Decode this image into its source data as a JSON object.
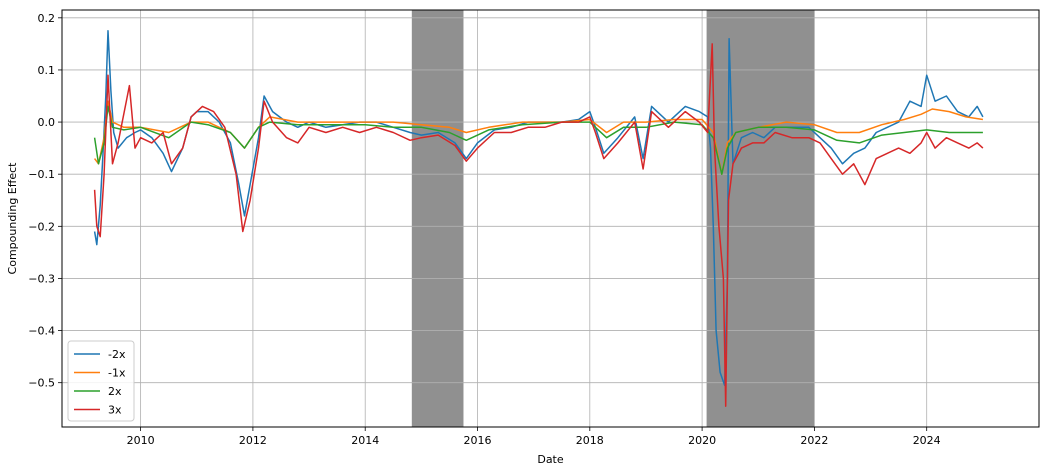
{
  "chart_data": {
    "type": "line",
    "xlabel": "Date",
    "ylabel": "Compounding Effect",
    "xlim": [
      2008.6,
      2026.0
    ],
    "ylim": [
      -0.585,
      0.215
    ],
    "x_ticks": [
      2010,
      2012,
      2014,
      2016,
      2018,
      2020,
      2022,
      2024
    ],
    "y_ticks": [
      0.2,
      0.1,
      0.0,
      -0.1,
      -0.2,
      -0.3,
      -0.4,
      -0.5
    ],
    "x_tick_labels": [
      "2010",
      "2012",
      "2014",
      "2016",
      "2018",
      "2020",
      "2022",
      "2024"
    ],
    "y_tick_labels": [
      "0.2",
      "0.1",
      "0.0",
      "−0.1",
      "−0.2",
      "−0.3",
      "−0.4",
      "−0.5"
    ],
    "grid": true,
    "legend_position": "lower-left",
    "shaded_regions": [
      {
        "start": 2014.83,
        "end": 2015.75,
        "color": "#909090"
      },
      {
        "start": 2020.08,
        "end": 2022.0,
        "color": "#909090"
      }
    ],
    "series": [
      {
        "name": "-2x",
        "color": "#1f77b4",
        "points": [
          [
            2009.18,
            -0.21
          ],
          [
            2009.22,
            -0.235
          ],
          [
            2009.28,
            -0.16
          ],
          [
            2009.33,
            -0.06
          ],
          [
            2009.38,
            0.05
          ],
          [
            2009.42,
            0.175
          ],
          [
            2009.47,
            0.06
          ],
          [
            2009.52,
            -0.02
          ],
          [
            2009.6,
            -0.05
          ],
          [
            2009.75,
            -0.03
          ],
          [
            2009.9,
            -0.02
          ],
          [
            2010.0,
            -0.015
          ],
          [
            2010.2,
            -0.03
          ],
          [
            2010.4,
            -0.06
          ],
          [
            2010.55,
            -0.095
          ],
          [
            2010.75,
            -0.05
          ],
          [
            2010.9,
            0.01
          ],
          [
            2011.0,
            0.02
          ],
          [
            2011.2,
            0.02
          ],
          [
            2011.4,
            0.0
          ],
          [
            2011.6,
            -0.04
          ],
          [
            2011.75,
            -0.12
          ],
          [
            2011.85,
            -0.18
          ],
          [
            2011.95,
            -0.12
          ],
          [
            2012.1,
            -0.03
          ],
          [
            2012.2,
            0.05
          ],
          [
            2012.35,
            0.02
          ],
          [
            2012.6,
            0.0
          ],
          [
            2012.8,
            -0.01
          ],
          [
            2013.0,
            0.0
          ],
          [
            2013.3,
            -0.01
          ],
          [
            2013.6,
            -0.005
          ],
          [
            2013.9,
            0.0
          ],
          [
            2014.2,
            0.0
          ],
          [
            2014.5,
            -0.01
          ],
          [
            2014.8,
            -0.02
          ],
          [
            2015.0,
            -0.025
          ],
          [
            2015.3,
            -0.02
          ],
          [
            2015.6,
            -0.04
          ],
          [
            2015.8,
            -0.07
          ],
          [
            2016.0,
            -0.04
          ],
          [
            2016.3,
            -0.015
          ],
          [
            2016.6,
            -0.01
          ],
          [
            2016.9,
            0.0
          ],
          [
            2017.2,
            0.0
          ],
          [
            2017.5,
            0.0
          ],
          [
            2017.8,
            0.005
          ],
          [
            2018.0,
            0.02
          ],
          [
            2018.1,
            -0.01
          ],
          [
            2018.25,
            -0.06
          ],
          [
            2018.5,
            -0.03
          ],
          [
            2018.8,
            0.01
          ],
          [
            2018.95,
            -0.07
          ],
          [
            2019.1,
            0.03
          ],
          [
            2019.4,
            0.0
          ],
          [
            2019.7,
            0.03
          ],
          [
            2019.95,
            0.02
          ],
          [
            2020.1,
            0.01
          ],
          [
            2020.15,
            -0.05
          ],
          [
            2020.2,
            -0.2
          ],
          [
            2020.25,
            -0.4
          ],
          [
            2020.32,
            -0.48
          ],
          [
            2020.4,
            -0.505
          ],
          [
            2020.45,
            -0.3
          ],
          [
            2020.48,
            0.16
          ],
          [
            2020.55,
            -0.08
          ],
          [
            2020.7,
            -0.03
          ],
          [
            2020.9,
            -0.02
          ],
          [
            2021.1,
            -0.03
          ],
          [
            2021.3,
            -0.01
          ],
          [
            2021.6,
            -0.01
          ],
          [
            2021.9,
            -0.01
          ],
          [
            2022.1,
            -0.03
          ],
          [
            2022.3,
            -0.05
          ],
          [
            2022.5,
            -0.08
          ],
          [
            2022.7,
            -0.06
          ],
          [
            2022.9,
            -0.05
          ],
          [
            2023.1,
            -0.02
          ],
          [
            2023.3,
            -0.01
          ],
          [
            2023.5,
            0.0
          ],
          [
            2023.7,
            0.04
          ],
          [
            2023.9,
            0.03
          ],
          [
            2024.0,
            0.09
          ],
          [
            2024.15,
            0.04
          ],
          [
            2024.35,
            0.05
          ],
          [
            2024.55,
            0.02
          ],
          [
            2024.75,
            0.01
          ],
          [
            2024.9,
            0.03
          ],
          [
            2025.0,
            0.01
          ]
        ]
      },
      {
        "name": "-1x",
        "color": "#ff7f0e",
        "points": [
          [
            2009.18,
            -0.07
          ],
          [
            2009.25,
            -0.08
          ],
          [
            2009.35,
            -0.03
          ],
          [
            2009.42,
            0.04
          ],
          [
            2009.5,
            0.0
          ],
          [
            2009.7,
            -0.01
          ],
          [
            2010.0,
            -0.01
          ],
          [
            2010.5,
            -0.02
          ],
          [
            2010.9,
            0.0
          ],
          [
            2011.2,
            0.0
          ],
          [
            2011.6,
            -0.02
          ],
          [
            2011.85,
            -0.05
          ],
          [
            2012.1,
            -0.01
          ],
          [
            2012.3,
            0.01
          ],
          [
            2012.8,
            0.0
          ],
          [
            2013.5,
            0.0
          ],
          [
            2014.0,
            0.0
          ],
          [
            2014.5,
            0.0
          ],
          [
            2015.0,
            -0.005
          ],
          [
            2015.5,
            -0.01
          ],
          [
            2015.8,
            -0.02
          ],
          [
            2016.2,
            -0.01
          ],
          [
            2016.8,
            0.0
          ],
          [
            2017.5,
            0.0
          ],
          [
            2018.0,
            0.005
          ],
          [
            2018.3,
            -0.02
          ],
          [
            2018.6,
            0.0
          ],
          [
            2019.0,
            0.0
          ],
          [
            2019.5,
            0.005
          ],
          [
            2020.0,
            0.005
          ],
          [
            2020.2,
            -0.02
          ],
          [
            2020.35,
            -0.1
          ],
          [
            2020.45,
            -0.04
          ],
          [
            2020.6,
            -0.02
          ],
          [
            2021.0,
            -0.01
          ],
          [
            2021.5,
            0.0
          ],
          [
            2022.0,
            -0.005
          ],
          [
            2022.4,
            -0.02
          ],
          [
            2022.8,
            -0.02
          ],
          [
            2023.2,
            -0.005
          ],
          [
            2023.6,
            0.005
          ],
          [
            2023.9,
            0.015
          ],
          [
            2024.1,
            0.025
          ],
          [
            2024.4,
            0.02
          ],
          [
            2024.7,
            0.01
          ],
          [
            2025.0,
            0.005
          ]
        ]
      },
      {
        "name": "2x",
        "color": "#2ca02c",
        "points": [
          [
            2009.18,
            -0.03
          ],
          [
            2009.25,
            -0.08
          ],
          [
            2009.35,
            -0.04
          ],
          [
            2009.42,
            0.03
          ],
          [
            2009.5,
            -0.01
          ],
          [
            2009.7,
            -0.015
          ],
          [
            2010.0,
            -0.01
          ],
          [
            2010.5,
            -0.03
          ],
          [
            2010.9,
            0.0
          ],
          [
            2011.2,
            -0.005
          ],
          [
            2011.6,
            -0.02
          ],
          [
            2011.85,
            -0.05
          ],
          [
            2012.1,
            -0.01
          ],
          [
            2012.3,
            0.0
          ],
          [
            2012.8,
            -0.005
          ],
          [
            2013.5,
            -0.005
          ],
          [
            2014.0,
            -0.005
          ],
          [
            2014.5,
            -0.01
          ],
          [
            2015.0,
            -0.01
          ],
          [
            2015.5,
            -0.02
          ],
          [
            2015.8,
            -0.035
          ],
          [
            2016.2,
            -0.015
          ],
          [
            2016.8,
            -0.005
          ],
          [
            2017.5,
            0.0
          ],
          [
            2018.0,
            0.0
          ],
          [
            2018.3,
            -0.03
          ],
          [
            2018.6,
            -0.01
          ],
          [
            2019.0,
            -0.01
          ],
          [
            2019.5,
            0.0
          ],
          [
            2020.0,
            -0.005
          ],
          [
            2020.2,
            -0.03
          ],
          [
            2020.35,
            -0.1
          ],
          [
            2020.45,
            -0.05
          ],
          [
            2020.6,
            -0.02
          ],
          [
            2021.0,
            -0.01
          ],
          [
            2021.5,
            -0.01
          ],
          [
            2022.0,
            -0.015
          ],
          [
            2022.4,
            -0.035
          ],
          [
            2022.8,
            -0.04
          ],
          [
            2023.2,
            -0.025
          ],
          [
            2023.6,
            -0.02
          ],
          [
            2024.0,
            -0.015
          ],
          [
            2024.4,
            -0.02
          ],
          [
            2024.7,
            -0.02
          ],
          [
            2025.0,
            -0.02
          ]
        ]
      },
      {
        "name": "3x",
        "color": "#d62728",
        "points": [
          [
            2009.18,
            -0.13
          ],
          [
            2009.22,
            -0.2
          ],
          [
            2009.28,
            -0.22
          ],
          [
            2009.35,
            -0.1
          ],
          [
            2009.42,
            0.09
          ],
          [
            2009.5,
            -0.08
          ],
          [
            2009.6,
            -0.04
          ],
          [
            2009.8,
            0.07
          ],
          [
            2009.9,
            -0.05
          ],
          [
            2010.0,
            -0.03
          ],
          [
            2010.2,
            -0.04
          ],
          [
            2010.4,
            -0.02
          ],
          [
            2010.55,
            -0.08
          ],
          [
            2010.75,
            -0.05
          ],
          [
            2010.9,
            0.01
          ],
          [
            2011.1,
            0.03
          ],
          [
            2011.3,
            0.02
          ],
          [
            2011.5,
            -0.01
          ],
          [
            2011.7,
            -0.1
          ],
          [
            2011.82,
            -0.21
          ],
          [
            2011.95,
            -0.15
          ],
          [
            2012.1,
            -0.05
          ],
          [
            2012.2,
            0.04
          ],
          [
            2012.35,
            0.0
          ],
          [
            2012.6,
            -0.03
          ],
          [
            2012.8,
            -0.04
          ],
          [
            2013.0,
            -0.01
          ],
          [
            2013.3,
            -0.02
          ],
          [
            2013.6,
            -0.01
          ],
          [
            2013.9,
            -0.02
          ],
          [
            2014.2,
            -0.01
          ],
          [
            2014.5,
            -0.02
          ],
          [
            2014.8,
            -0.035
          ],
          [
            2015.0,
            -0.03
          ],
          [
            2015.3,
            -0.025
          ],
          [
            2015.6,
            -0.045
          ],
          [
            2015.8,
            -0.075
          ],
          [
            2016.0,
            -0.05
          ],
          [
            2016.3,
            -0.02
          ],
          [
            2016.6,
            -0.02
          ],
          [
            2016.9,
            -0.01
          ],
          [
            2017.2,
            -0.01
          ],
          [
            2017.5,
            0.0
          ],
          [
            2017.8,
            0.0
          ],
          [
            2018.0,
            0.01
          ],
          [
            2018.1,
            -0.02
          ],
          [
            2018.25,
            -0.07
          ],
          [
            2018.5,
            -0.04
          ],
          [
            2018.8,
            0.0
          ],
          [
            2018.95,
            -0.09
          ],
          [
            2019.1,
            0.02
          ],
          [
            2019.4,
            -0.01
          ],
          [
            2019.7,
            0.02
          ],
          [
            2019.95,
            0.0
          ],
          [
            2020.1,
            -0.02
          ],
          [
            2020.18,
            0.15
          ],
          [
            2020.22,
            -0.05
          ],
          [
            2020.3,
            -0.2
          ],
          [
            2020.38,
            -0.3
          ],
          [
            2020.42,
            -0.545
          ],
          [
            2020.47,
            -0.15
          ],
          [
            2020.55,
            -0.08
          ],
          [
            2020.7,
            -0.05
          ],
          [
            2020.9,
            -0.04
          ],
          [
            2021.1,
            -0.04
          ],
          [
            2021.3,
            -0.02
          ],
          [
            2021.6,
            -0.03
          ],
          [
            2021.9,
            -0.03
          ],
          [
            2022.1,
            -0.04
          ],
          [
            2022.3,
            -0.07
          ],
          [
            2022.5,
            -0.1
          ],
          [
            2022.7,
            -0.08
          ],
          [
            2022.9,
            -0.12
          ],
          [
            2023.1,
            -0.07
          ],
          [
            2023.3,
            -0.06
          ],
          [
            2023.5,
            -0.05
          ],
          [
            2023.7,
            -0.06
          ],
          [
            2023.9,
            -0.04
          ],
          [
            2024.0,
            -0.02
          ],
          [
            2024.15,
            -0.05
          ],
          [
            2024.35,
            -0.03
          ],
          [
            2024.55,
            -0.04
          ],
          [
            2024.75,
            -0.05
          ],
          [
            2024.9,
            -0.04
          ],
          [
            2025.0,
            -0.05
          ]
        ]
      }
    ]
  }
}
